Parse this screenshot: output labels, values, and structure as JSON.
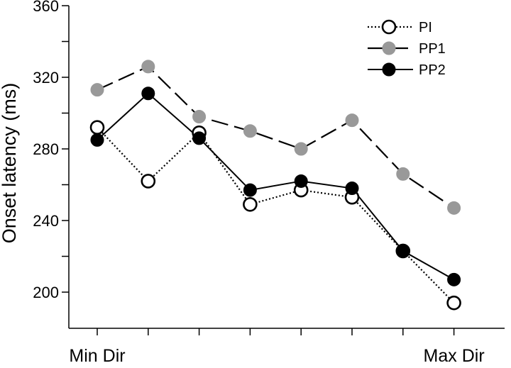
{
  "chart_data": {
    "type": "line",
    "title": "",
    "xlabel": "",
    "ylabel": "Onset latency (ms)",
    "ylim": [
      180,
      360
    ],
    "y_ticks": [
      {
        "value": 200,
        "label": "200"
      },
      {
        "value": 240,
        "label": "240"
      },
      {
        "value": 280,
        "label": "280"
      },
      {
        "value": 320,
        "label": "320"
      },
      {
        "value": 360,
        "label": "360"
      }
    ],
    "y_minor_ticks": [
      220,
      260,
      300,
      340
    ],
    "categories": [
      "Min Dir",
      "",
      "",
      "",
      "",
      "",
      "",
      "Max Dir"
    ],
    "grid": false,
    "legend_position": "top-right",
    "series": [
      {
        "name": "PI",
        "values": [
          292,
          262,
          289,
          249,
          257,
          253,
          223,
          194
        ],
        "line_style": "dotted",
        "marker": "open-circle",
        "color": "#000000"
      },
      {
        "name": "PP1",
        "values": [
          313,
          326,
          298,
          290,
          280,
          296,
          266,
          247
        ],
        "line_style": "dashed",
        "marker": "filled-circle",
        "color": "#999999"
      },
      {
        "name": "PP2",
        "values": [
          285,
          311,
          286,
          257,
          262,
          258,
          223,
          207
        ],
        "line_style": "solid",
        "marker": "filled-circle",
        "color": "#000000"
      }
    ]
  }
}
